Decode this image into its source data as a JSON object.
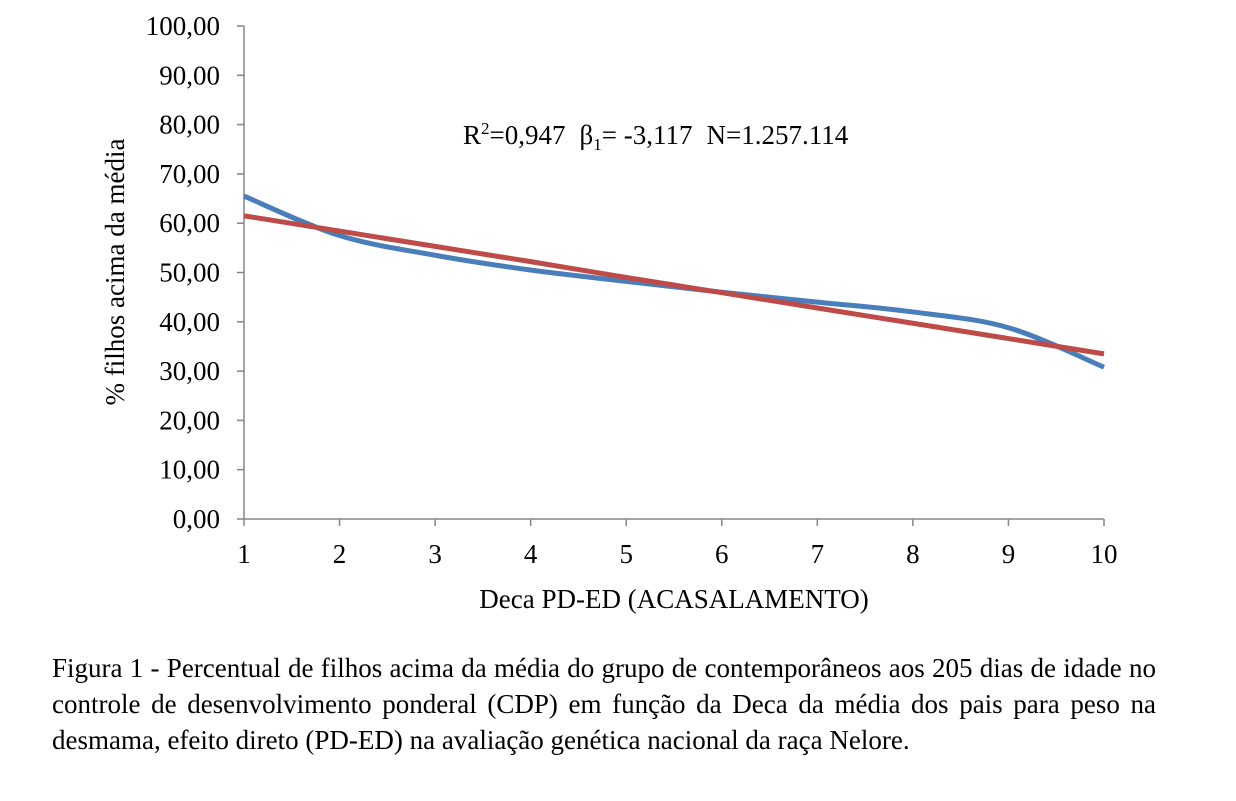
{
  "chart_data": {
    "type": "line",
    "xlabel": "Deca PD-ED (ACASALAMENTO)",
    "ylabel": "% filhos acima da média",
    "x": [
      1,
      2,
      3,
      4,
      5,
      6,
      7,
      8,
      9,
      10
    ],
    "xlim": [
      1,
      10
    ],
    "ylim": [
      0,
      100
    ],
    "x_ticks": [
      "1",
      "2",
      "3",
      "4",
      "5",
      "6",
      "7",
      "8",
      "9",
      "10"
    ],
    "y_ticks": [
      "0,00",
      "10,00",
      "20,00",
      "30,00",
      "40,00",
      "50,00",
      "60,00",
      "70,00",
      "80,00",
      "90,00",
      "100,00"
    ],
    "series": [
      {
        "color": "#4a7ebb",
        "values": [
          65.5,
          57.5,
          53.5,
          50.5,
          48.2,
          46.0,
          44.0,
          42.0,
          38.8,
          30.8
        ]
      },
      {
        "color": "#be4b48",
        "values": [
          61.5,
          58.4,
          55.3,
          52.2,
          49.0,
          45.9,
          42.8,
          39.7,
          36.6,
          33.5
        ]
      }
    ],
    "annotation": {
      "r2_prefix": "R",
      "r2_sup": "2",
      "r2_value": "=0,947",
      "beta": "β",
      "beta_sub": "1",
      "beta_value": "= -3,117",
      "n_text": "N=1.257.114"
    },
    "grid": false,
    "legend": "none"
  },
  "caption": {
    "label": "Figura 1 - ",
    "text": "Percentual de filhos acima da média do grupo de contemporâneos aos 205 dias de idade no controle de desenvolvimento ponderal (CDP) em função da Deca da média dos pais para peso na desmama, efeito direto (PD-ED) na avaliação genética nacional da raça Nelore."
  }
}
